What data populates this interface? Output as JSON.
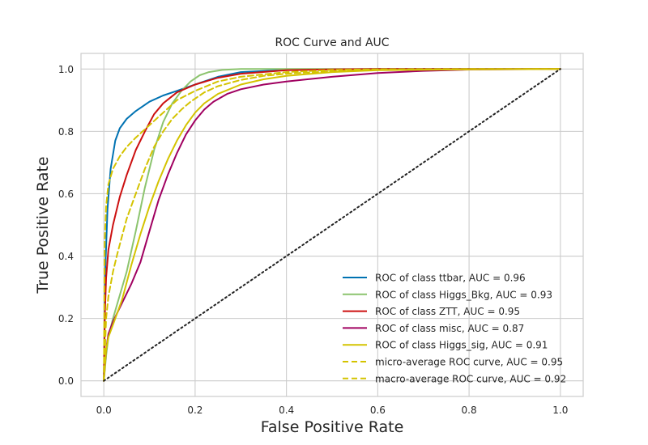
{
  "chart_data": {
    "type": "line",
    "title": "ROC Curve and AUC",
    "xlabel": "False Positive Rate",
    "ylabel": "True Positive Rate",
    "xlim": [
      -0.05,
      1.05
    ],
    "ylim": [
      -0.05,
      1.05
    ],
    "xticks": [
      0.0,
      0.2,
      0.4,
      0.6,
      0.8,
      1.0
    ],
    "yticks": [
      0.0,
      0.2,
      0.4,
      0.6,
      0.8,
      1.0
    ],
    "xtick_labels": [
      "0.0",
      "0.2",
      "0.4",
      "0.6",
      "0.8",
      "1.0"
    ],
    "ytick_labels": [
      "0.0",
      "0.2",
      "0.4",
      "0.6",
      "0.8",
      "1.0"
    ],
    "grid": true,
    "legend_position": "lower-right",
    "series": [
      {
        "name": "ROC of class ttbar, AUC = 0.96",
        "color": "#0072B2",
        "dash": "solid",
        "x": [
          0,
          0.003,
          0.008,
          0.015,
          0.025,
          0.035,
          0.05,
          0.07,
          0.1,
          0.13,
          0.16,
          0.2,
          0.25,
          0.3,
          0.4,
          0.5,
          0.6,
          0.8,
          1.0
        ],
        "y": [
          0,
          0.35,
          0.55,
          0.68,
          0.77,
          0.81,
          0.84,
          0.865,
          0.895,
          0.915,
          0.93,
          0.95,
          0.975,
          0.99,
          0.997,
          0.999,
          1.0,
          1.0,
          1.0
        ]
      },
      {
        "name": "ROC of class Higgs_Bkg, AUC = 0.93",
        "color": "#8CC46E",
        "dash": "solid",
        "x": [
          0,
          0.005,
          0.01,
          0.02,
          0.03,
          0.05,
          0.07,
          0.09,
          0.11,
          0.13,
          0.15,
          0.17,
          0.19,
          0.21,
          0.23,
          0.26,
          0.3,
          0.4,
          0.6,
          1.0
        ],
        "y": [
          0,
          0.08,
          0.14,
          0.2,
          0.25,
          0.35,
          0.48,
          0.62,
          0.74,
          0.83,
          0.89,
          0.93,
          0.96,
          0.98,
          0.99,
          0.997,
          1.0,
          1.0,
          1.0,
          1.0
        ]
      },
      {
        "name": "ROC of class ZTT, AUC = 0.95",
        "color": "#CC1010",
        "dash": "solid",
        "x": [
          0,
          0.002,
          0.005,
          0.01,
          0.02,
          0.035,
          0.05,
          0.07,
          0.09,
          0.11,
          0.13,
          0.16,
          0.2,
          0.25,
          0.3,
          0.4,
          0.5,
          0.6,
          0.8,
          1.0
        ],
        "y": [
          0,
          0.2,
          0.33,
          0.42,
          0.5,
          0.59,
          0.66,
          0.74,
          0.8,
          0.855,
          0.89,
          0.925,
          0.95,
          0.972,
          0.985,
          0.996,
          0.999,
          1.0,
          1.0,
          1.0
        ]
      },
      {
        "name": "ROC of class misc, AUC = 0.87",
        "color": "#A00060",
        "dash": "solid",
        "x": [
          0,
          0.005,
          0.01,
          0.02,
          0.04,
          0.06,
          0.08,
          0.1,
          0.12,
          0.14,
          0.16,
          0.18,
          0.2,
          0.22,
          0.24,
          0.27,
          0.3,
          0.35,
          0.4,
          0.5,
          0.6,
          0.7,
          0.8,
          1.0
        ],
        "y": [
          0,
          0.1,
          0.15,
          0.19,
          0.25,
          0.31,
          0.38,
          0.48,
          0.58,
          0.66,
          0.73,
          0.79,
          0.835,
          0.87,
          0.895,
          0.92,
          0.935,
          0.95,
          0.96,
          0.975,
          0.987,
          0.994,
          0.998,
          1.0
        ]
      },
      {
        "name": "ROC of class Higgs_sig, AUC = 0.91",
        "color": "#D4C300",
        "dash": "solid",
        "x": [
          0,
          0.005,
          0.01,
          0.02,
          0.04,
          0.06,
          0.08,
          0.1,
          0.12,
          0.14,
          0.16,
          0.18,
          0.2,
          0.22,
          0.25,
          0.3,
          0.35,
          0.4,
          0.5,
          0.6,
          0.8,
          1.0
        ],
        "y": [
          0,
          0.1,
          0.14,
          0.18,
          0.26,
          0.37,
          0.47,
          0.56,
          0.64,
          0.71,
          0.77,
          0.82,
          0.86,
          0.89,
          0.92,
          0.95,
          0.967,
          0.978,
          0.99,
          0.996,
          0.999,
          1.0
        ]
      },
      {
        "name": "micro-average ROC curve, AUC = 0.95",
        "color": "#D4C300",
        "dash": "dashed",
        "x": [
          0,
          0.002,
          0.005,
          0.01,
          0.02,
          0.035,
          0.05,
          0.07,
          0.1,
          0.13,
          0.16,
          0.2,
          0.25,
          0.3,
          0.4,
          0.5,
          0.6,
          0.8,
          1.0
        ],
        "y": [
          0,
          0.45,
          0.56,
          0.63,
          0.68,
          0.72,
          0.75,
          0.78,
          0.82,
          0.86,
          0.9,
          0.93,
          0.96,
          0.975,
          0.99,
          0.997,
          0.999,
          1.0,
          1.0
        ]
      },
      {
        "name": "macro-average ROC curve, AUC = 0.92",
        "color": "#D4C300",
        "dash": "dashed",
        "x": [
          0,
          0.005,
          0.01,
          0.02,
          0.03,
          0.05,
          0.07,
          0.09,
          0.11,
          0.13,
          0.15,
          0.17,
          0.19,
          0.22,
          0.25,
          0.3,
          0.35,
          0.4,
          0.5,
          0.6,
          0.8,
          1.0
        ],
        "y": [
          0,
          0.2,
          0.27,
          0.35,
          0.41,
          0.52,
          0.6,
          0.68,
          0.75,
          0.8,
          0.84,
          0.87,
          0.895,
          0.925,
          0.945,
          0.965,
          0.978,
          0.985,
          0.993,
          0.997,
          0.999,
          1.0
        ]
      },
      {
        "name": "",
        "color": "#222222",
        "dash": "dotted",
        "x": [
          0,
          1
        ],
        "y": [
          0,
          1
        ]
      }
    ]
  }
}
